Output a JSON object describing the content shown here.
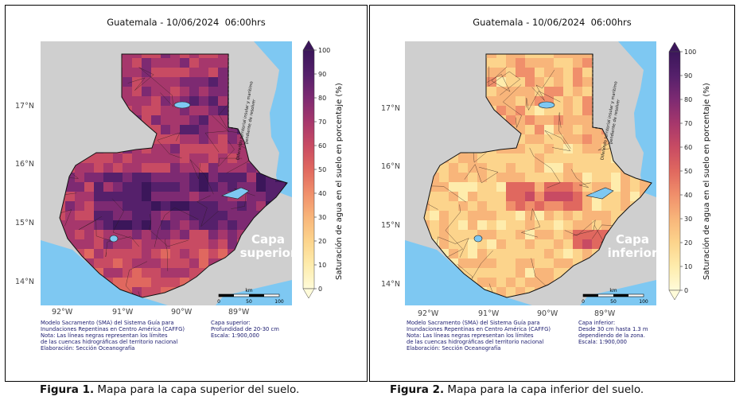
{
  "maps": [
    {
      "title": "Guatemala - 10/06/2024  06:00hrs",
      "layer_label": [
        "Capa",
        "superior"
      ],
      "dispute_text": [
        "Diferendo territorial insular y marítimo",
        "pendiente de resolver"
      ],
      "credits": [
        "Modelo Sacramento (SMA) del Sistema Guía para",
        "Inundaciones Repentinas en Centro América (CAFFG)",
        "Nota: Las líneas negras representan los límites",
        "de las cuencas hidrográficas del territorio nacional",
        "Elaboración: Sección Oceanografía"
      ],
      "credits_right": [
        "Capa superior:",
        "Profundidad de 20-30 cm",
        "Escala: 1:900,000"
      ],
      "palette": "superior",
      "caption_bold": "Figura 1.",
      "caption_text": " Mapa para la capa superior del suelo."
    },
    {
      "title": "Guatemala - 10/06/2024  06:00hrs",
      "layer_label": [
        "Capa",
        "inferior"
      ],
      "dispute_text": [
        "Diferendo territorial insular y marítimo",
        "pendiente de resolver"
      ],
      "credits": [
        "Modelo Sacramento (SMA) del Sistema Guía para",
        "Inundaciones Repentinas en Centro América (CAFFG)",
        "Nota: Las líneas negras representan los límites",
        "de las cuencas hidrográficas del territorio nacional",
        "Elaboración: Sección Oceanografía"
      ],
      "credits_right": [
        "Capa inferior:",
        "Desde 30 cm hasta 1.3 m",
        "dependiendo de la zona.",
        "Escala: 1:900,000"
      ],
      "palette": "inferior",
      "caption_bold": "Figura 2.",
      "caption_text": " Mapa para la capa inferior del suelo."
    }
  ],
  "lat_ticks": [
    "17°N",
    "16°N",
    "15°N",
    "14°N"
  ],
  "lon_ticks": [
    "92°W",
    "91°W",
    "90°W",
    "89°W"
  ],
  "colorbar": {
    "label": "Saturación de agua en el suelo en porcentaje (%)",
    "ticks": [
      "100",
      "90",
      "80",
      "70",
      "60",
      "50",
      "40",
      "30",
      "20",
      "10",
      "0"
    ]
  },
  "scalebar": {
    "unit": "km",
    "ticks": [
      "0",
      "50",
      "100"
    ]
  },
  "colors": {
    "land_outside": "#cfcfcf",
    "water": "#7ec8f2",
    "scale_stops": [
      "#fffbd9",
      "#feecac",
      "#fcd48c",
      "#f8b57a",
      "#f08f6b",
      "#e0685f",
      "#c84b63",
      "#a6376c",
      "#7d2a72",
      "#55206b",
      "#3b165a"
    ]
  }
}
